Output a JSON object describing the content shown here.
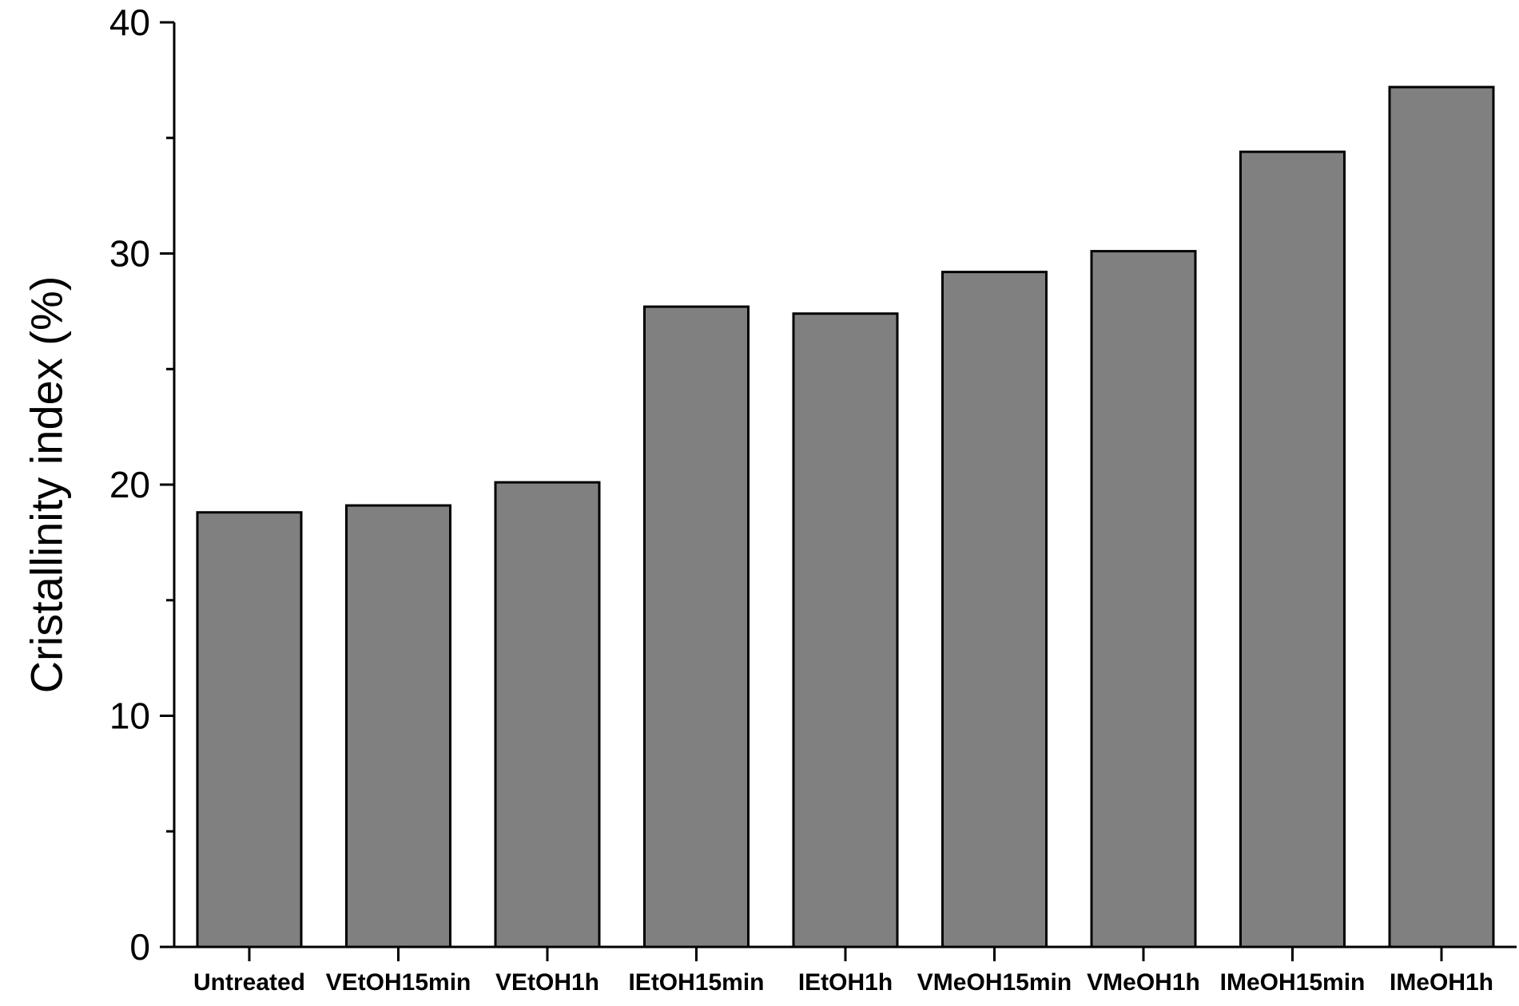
{
  "chart_data": {
    "type": "bar",
    "title": "",
    "xlabel": "",
    "ylabel": "Cristallinity index (%)",
    "ylim": [
      0,
      40
    ],
    "y_major_ticks": [
      0,
      10,
      20,
      30,
      40
    ],
    "y_minor_ticks": [
      5,
      15,
      25,
      35
    ],
    "grid": false,
    "legend": "none",
    "bar_color": "#808080",
    "bar_edge_color": "#000000",
    "categories": [
      "Untreated",
      "VEtOH15min",
      "VEtOH1h",
      "IEtOH15min",
      "IEtOH1h",
      "VMeOH15min",
      "VMeOH1h",
      "IMeOH15min",
      "IMeOH1h"
    ],
    "values": [
      18.8,
      19.1,
      20.1,
      27.7,
      27.4,
      29.2,
      30.1,
      34.4,
      37.2
    ]
  }
}
